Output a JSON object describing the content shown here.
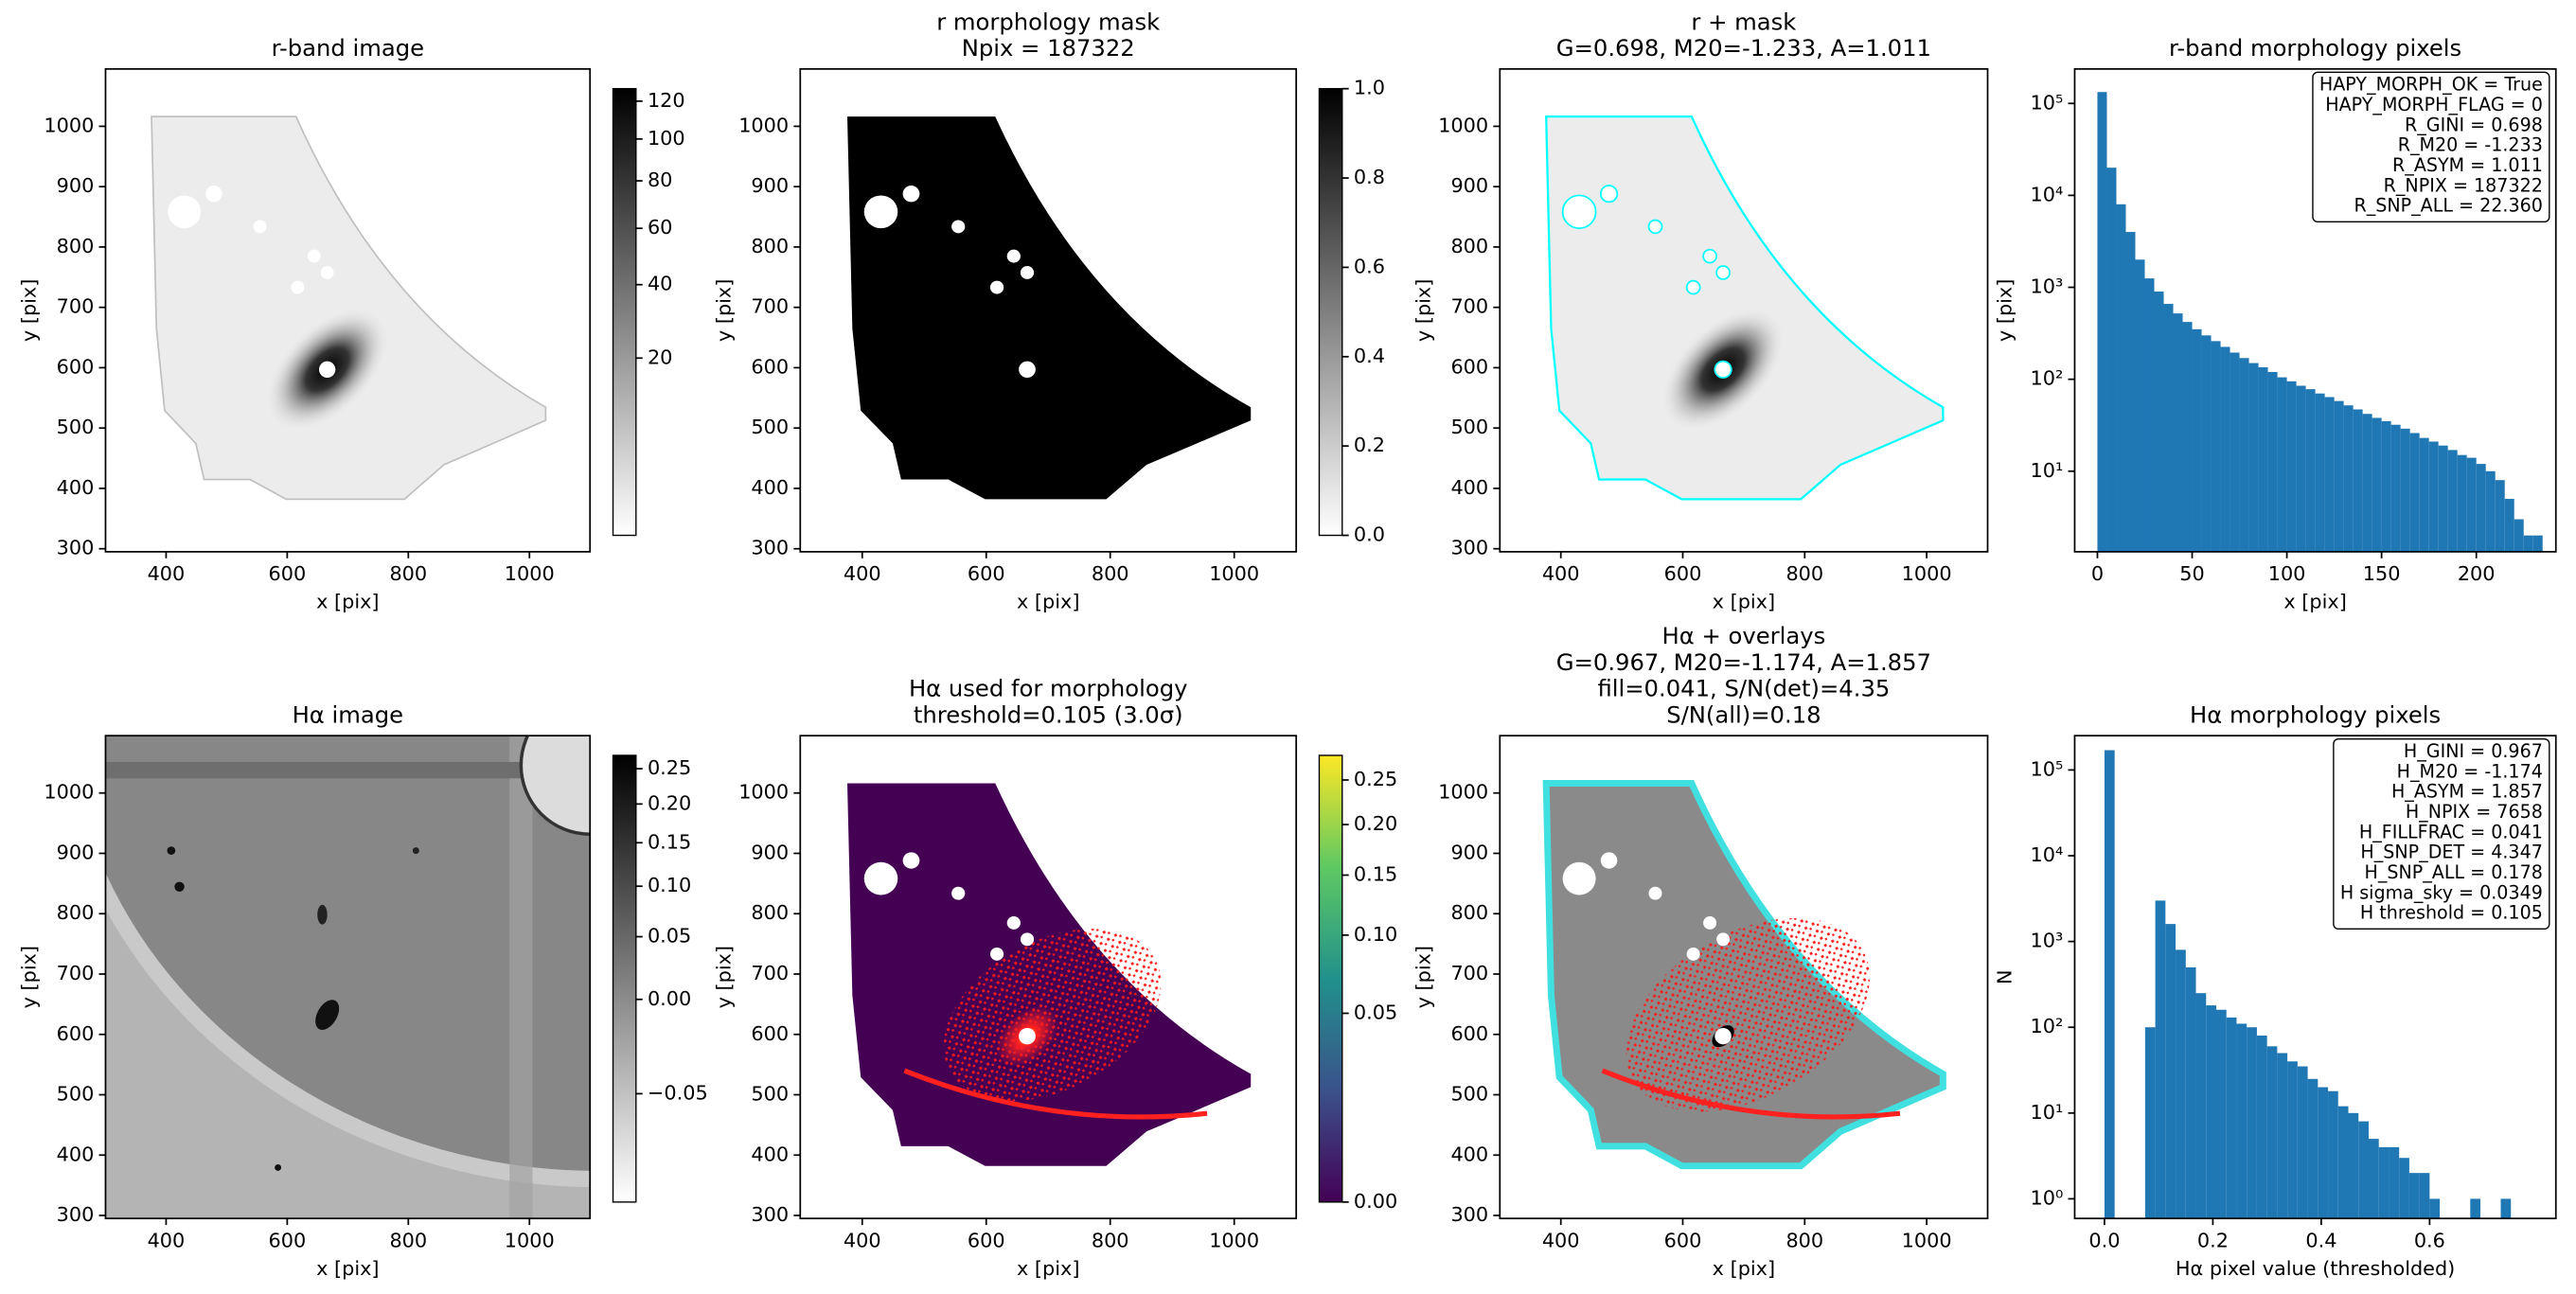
{
  "chart_data": [
    {
      "type": "image",
      "title": [
        "r-band image"
      ],
      "xlabel": "x [pix]",
      "ylabel": "y [pix]",
      "xlim": [
        300,
        1100
      ],
      "ylim": [
        295,
        1095
      ],
      "xticks": [
        400,
        600,
        800,
        1000
      ],
      "yticks": [
        300,
        400,
        500,
        600,
        700,
        800,
        900,
        1000
      ],
      "colorbar": {
        "clim": [
          0,
          127
        ],
        "scale": "sqrt",
        "colormap": "gray_r",
        "ticks": [
          20,
          40,
          60,
          80,
          100,
          120
        ]
      }
    },
    {
      "type": "image",
      "title": [
        "r morphology mask",
        "Npix = 187322"
      ],
      "xlabel": "x [pix]",
      "ylabel": "y [pix]",
      "xlim": [
        300,
        1100
      ],
      "ylim": [
        295,
        1095
      ],
      "xticks": [
        400,
        600,
        800,
        1000
      ],
      "yticks": [
        300,
        400,
        500,
        600,
        700,
        800,
        900,
        1000
      ],
      "colorbar": {
        "clim": [
          0,
          1
        ],
        "scale": "linear",
        "colormap": "gray_r",
        "ticks": [
          {
            "value": 0,
            "label": "0.0"
          },
          0.2,
          0.4,
          0.6,
          0.8,
          {
            "value": 1,
            "label": "1.0"
          }
        ]
      }
    },
    {
      "type": "image",
      "title": [
        "r + mask",
        "G=0.698, M20=-1.233, A=1.011"
      ],
      "xlabel": "x [pix]",
      "ylabel": "y [pix]",
      "xlim": [
        300,
        1100
      ],
      "ylim": [
        295,
        1095
      ],
      "xticks": [
        400,
        600,
        800,
        1000
      ],
      "yticks": [
        300,
        400,
        500,
        600,
        700,
        800,
        900,
        1000
      ]
    },
    {
      "type": "histogram",
      "title": [
        "r-band morphology pixels"
      ],
      "xlabel": "x [pix]",
      "ylabel": "y [pix]",
      "log_y": true,
      "xlim": [
        -12,
        242
      ],
      "ylim": [
        1.33,
        237000
      ],
      "xticks": [
        0,
        50,
        100,
        150,
        200
      ],
      "yticks": [
        {
          "value": 10,
          "label": "10¹"
        },
        {
          "value": 100,
          "label": "10²"
        },
        {
          "value": 1000,
          "label": "10³"
        },
        {
          "value": 10000,
          "label": "10⁴"
        },
        {
          "value": 100000,
          "label": "10⁵"
        }
      ],
      "bins": [
        0,
        5,
        10,
        15,
        20,
        25,
        30,
        35,
        40,
        45,
        50,
        55,
        60,
        65,
        70,
        75,
        80,
        85,
        90,
        95,
        100,
        105,
        110,
        115,
        120,
        125,
        130,
        135,
        140,
        145,
        150,
        155,
        160,
        165,
        170,
        175,
        180,
        185,
        190,
        195,
        200,
        205,
        210,
        215,
        220,
        225,
        230,
        235
      ],
      "counts": [
        133000,
        20000,
        8000,
        4000,
        2000,
        1250,
        900,
        660,
        520,
        420,
        350,
        300,
        260,
        225,
        195,
        170,
        150,
        135,
        120,
        105,
        95,
        85,
        78,
        70,
        64,
        58,
        52,
        47,
        42,
        38,
        35,
        32,
        29,
        26,
        23,
        21,
        19,
        17,
        15,
        14,
        12,
        10,
        8,
        5,
        3,
        2,
        2
      ],
      "color": "#1f77b4",
      "annotation": [
        "HAPY_MORPH_OK = True",
        "HAPY_MORPH_FLAG = 0",
        "R_GINI = 0.698",
        "R_M20 = -1.233",
        "R_ASYM = 1.011",
        "R_NPIX = 187322",
        "R_SNP_ALL = 22.360"
      ]
    },
    {
      "type": "image",
      "title": [
        "Hα image"
      ],
      "xlabel": "x [pix]",
      "ylabel": "y [pix]",
      "xlim": [
        300,
        1100
      ],
      "ylim": [
        295,
        1095
      ],
      "xticks": [
        400,
        600,
        800,
        1000
      ],
      "yticks": [
        300,
        400,
        500,
        600,
        700,
        800,
        900,
        1000
      ],
      "colorbar": {
        "clim": [
          -0.07,
          0.27
        ],
        "scale": "sqrt",
        "colormap": "gray_r",
        "ticks": [
          {
            "value": -0.05,
            "label": "−0.05"
          },
          {
            "value": 0,
            "label": "0.00"
          },
          0.05,
          {
            "value": 0.1,
            "label": "0.10"
          },
          0.15,
          {
            "value": 0.2,
            "label": "0.20"
          },
          0.25
        ]
      }
    },
    {
      "type": "image",
      "title": [
        "Hα used for morphology",
        "threshold=0.105 (3.0σ)"
      ],
      "xlabel": "x [pix]",
      "ylabel": "y [pix]",
      "xlim": [
        300,
        1100
      ],
      "ylim": [
        295,
        1095
      ],
      "xticks": [
        400,
        600,
        800,
        1000
      ],
      "yticks": [
        300,
        400,
        500,
        600,
        700,
        800,
        900,
        1000
      ],
      "colorbar": {
        "clim": [
          0,
          0.28
        ],
        "scale": "sqrt",
        "colormap": "viridis",
        "ticks": [
          {
            "value": 0,
            "label": "0.00"
          },
          0.05,
          {
            "value": 0.1,
            "label": "0.10"
          },
          0.15,
          {
            "value": 0.2,
            "label": "0.20"
          },
          0.25
        ]
      }
    },
    {
      "type": "image",
      "title": [
        "Hα + overlays",
        "G=0.967, M20=-1.174, A=1.857",
        "fill=0.041, S/N(det)=4.35",
        "S/N(all)=0.18"
      ],
      "xlabel": "x [pix]",
      "ylabel": "y [pix]",
      "xlim": [
        300,
        1100
      ],
      "ylim": [
        295,
        1095
      ],
      "xticks": [
        400,
        600,
        800,
        1000
      ],
      "yticks": [
        300,
        400,
        500,
        600,
        700,
        800,
        900,
        1000
      ]
    },
    {
      "type": "histogram",
      "title": [
        "Hα morphology pixels"
      ],
      "xlabel": "Hα pixel value (thresholded)",
      "ylabel": "N",
      "log_y": true,
      "xlim": [
        -0.055,
        0.833
      ],
      "ylim": [
        0.59,
        251000
      ],
      "xticks": [
        {
          "value": 0,
          "label": "0.0"
        },
        0.2,
        0.4,
        0.6
      ],
      "yticks": [
        {
          "value": 1,
          "label": "10⁰"
        },
        {
          "value": 10,
          "label": "10¹"
        },
        {
          "value": 100,
          "label": "10²"
        },
        {
          "value": 1000,
          "label": "10³"
        },
        {
          "value": 10000,
          "label": "10⁴"
        },
        {
          "value": 100000,
          "label": "10⁵"
        }
      ],
      "bins": [
        0,
        0.01875,
        0.0375,
        0.05625,
        0.075,
        0.09375,
        0.1125,
        0.13125,
        0.15,
        0.16875,
        0.1875,
        0.20625,
        0.225,
        0.24375,
        0.2625,
        0.28125,
        0.3,
        0.31875,
        0.3375,
        0.35625,
        0.375,
        0.39375,
        0.4125,
        0.43125,
        0.45,
        0.46875,
        0.4875,
        0.50625,
        0.525,
        0.54375,
        0.5625,
        0.58125,
        0.6,
        0.61875,
        0.6375,
        0.65625,
        0.675,
        0.69375,
        0.7125,
        0.73125,
        0.75
      ],
      "counts": [
        170000,
        0,
        0,
        0,
        100,
        3000,
        1600,
        800,
        500,
        250,
        180,
        160,
        130,
        110,
        100,
        80,
        60,
        50,
        40,
        35,
        25,
        20,
        18,
        12,
        10,
        8,
        5,
        4,
        4,
        3,
        2,
        2,
        1,
        0,
        0,
        0,
        1,
        0,
        0,
        1
      ],
      "color": "#1f77b4",
      "annotation": [
        "H_GINI = 0.967",
        "H_M20 = -1.174",
        "H_ASYM = 1.857",
        "H_NPIX = 7658",
        "H_FILLFRAC = 0.041",
        "H_SNP_DET = 4.347",
        "H_SNP_ALL = 0.178",
        "H sigma_sky = 0.0349",
        "H threshold = 0.105"
      ]
    }
  ]
}
